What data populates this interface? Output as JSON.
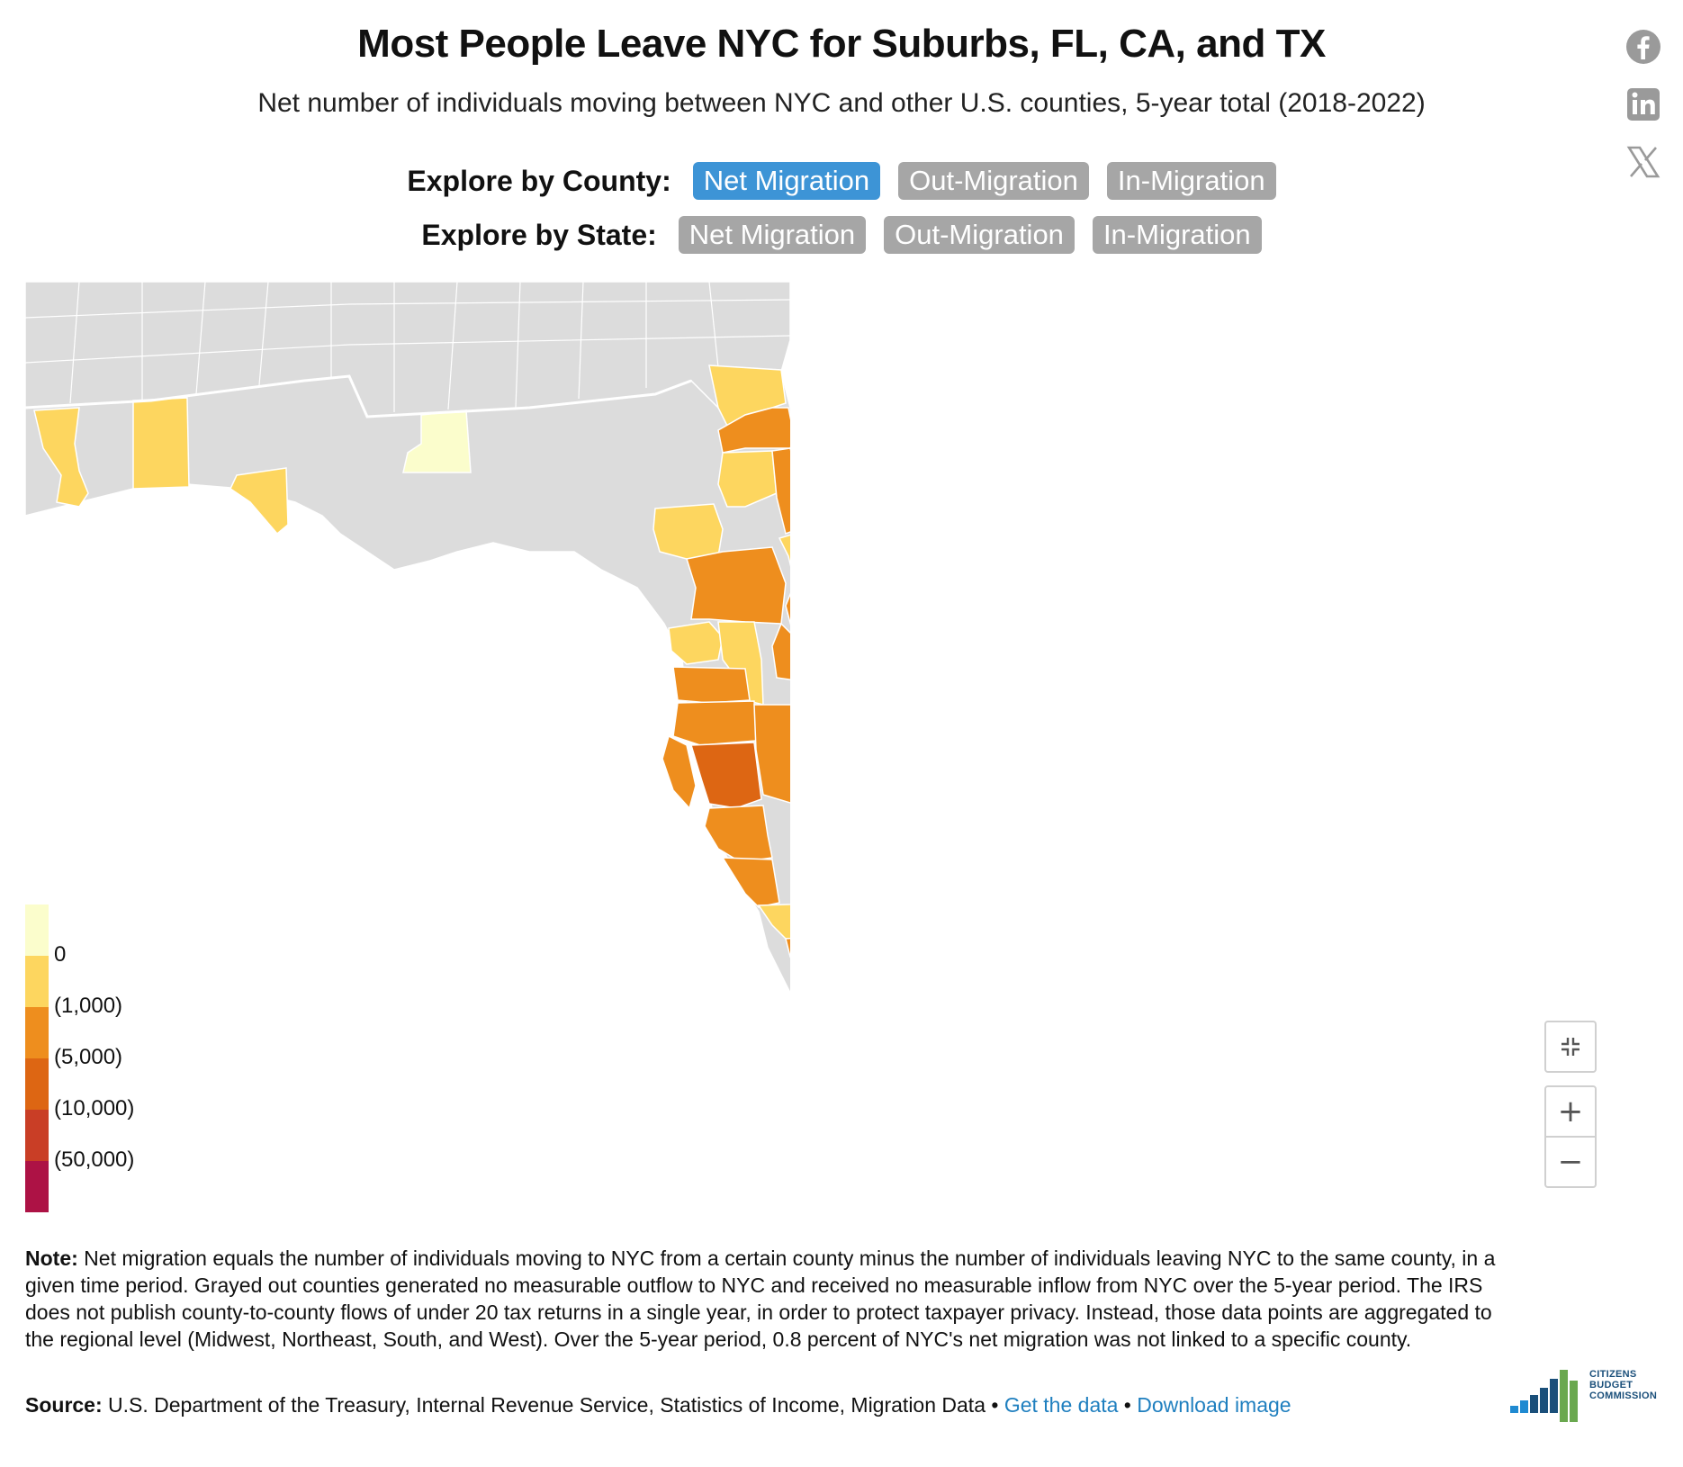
{
  "header": {
    "title": "Most People Leave NYC for Suburbs, FL, CA, and TX",
    "subtitle": "Net number of individuals moving between NYC and other U.S. counties, 5-year total (2018-2022)"
  },
  "explore": {
    "county": {
      "label": "Explore by County:",
      "buttons": [
        {
          "label": "Net Migration",
          "active": true
        },
        {
          "label": "Out-Migration",
          "active": false
        },
        {
          "label": "In-Migration",
          "active": false
        }
      ]
    },
    "state": {
      "label": "Explore by State:",
      "buttons": [
        {
          "label": "Net Migration",
          "active": false
        },
        {
          "label": "Out-Migration",
          "active": false
        },
        {
          "label": "In-Migration",
          "active": false
        }
      ]
    }
  },
  "share_icons": [
    "facebook-icon",
    "linkedin-icon",
    "x-icon"
  ],
  "legend": {
    "labels": [
      "0",
      "(1,000)",
      "(5,000)",
      "(10,000)",
      "(50,000)"
    ],
    "colors": [
      "#fbfdcc",
      "#fdd65f",
      "#ee8e1e",
      "#dd6613",
      "#c93e26",
      "#ad1245"
    ]
  },
  "map": {
    "region": "Florida",
    "no_data_color": "#dcdcdc"
  },
  "zoom": {
    "fullscreen_icon": "collapse-icon",
    "zoom_in": "+",
    "zoom_out": "−"
  },
  "note": {
    "label": "Note:",
    "text": " Net migration equals the number of individuals moving to NYC from a certain county minus the number of individuals leaving NYC to the same county, in a given time period. Grayed out counties generated no measurable outflow to NYC and received no measurable inflow from NYC over the 5-year period. The IRS does not publish county-to-county flows of under 20 tax returns in a single year, in order to protect taxpayer privacy. Instead, those data points are aggregated to the regional level (Midwest, Northeast, South, and West). Over the 5-year period, 0.8 percent of NYC's net migration was not linked to a specific county."
  },
  "source": {
    "label": "Source:",
    "text": " U.S. Department of the Treasury, Internal Revenue Service, Statistics of Income, Migration Data",
    "sep": " • ",
    "get_data": "Get the data",
    "download": "Download image"
  },
  "logo": {
    "line1": "CITIZENS",
    "line2": "BUDGET",
    "line3": "COMMISSION"
  }
}
